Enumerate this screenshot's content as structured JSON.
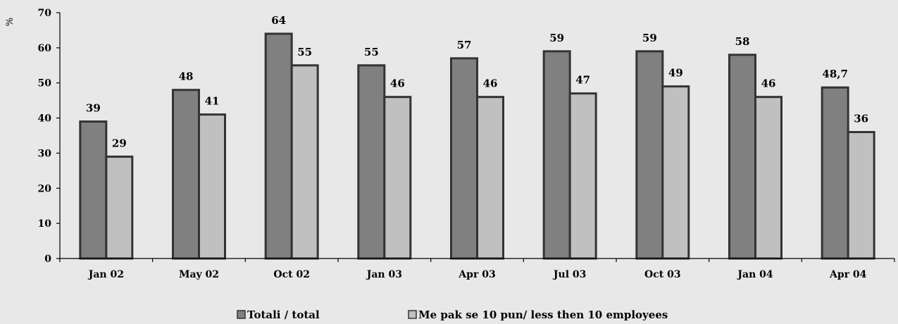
{
  "chart_data": {
    "type": "bar",
    "ylabel": "%",
    "ylim": [
      0,
      70
    ],
    "yticks": [
      0,
      10,
      20,
      30,
      40,
      50,
      60,
      70
    ],
    "grid": false,
    "legend_position": "bottom",
    "categories": [
      "Jan 02",
      "May 02",
      "Oct 02",
      "Jan 03",
      "Apr 03",
      "Jul 03",
      "Oct 03",
      "Jan 04",
      "Apr 04"
    ],
    "series": [
      {
        "name": "Totali / total",
        "color": "#808080",
        "values": [
          39,
          48,
          64,
          55,
          57,
          59,
          59,
          58,
          48.7
        ],
        "labels": [
          "39",
          "48",
          "64",
          "55",
          "57",
          "59",
          "59",
          "58",
          "48,7"
        ]
      },
      {
        "name": "Me pak se 10 pun/ less then 10 employees",
        "color": "#c0c0c0",
        "values": [
          29,
          41,
          55,
          46,
          46,
          47,
          49,
          46,
          36
        ],
        "labels": [
          "29",
          "41",
          "55",
          "46",
          "46",
          "47",
          "49",
          "46",
          "36"
        ]
      }
    ]
  }
}
